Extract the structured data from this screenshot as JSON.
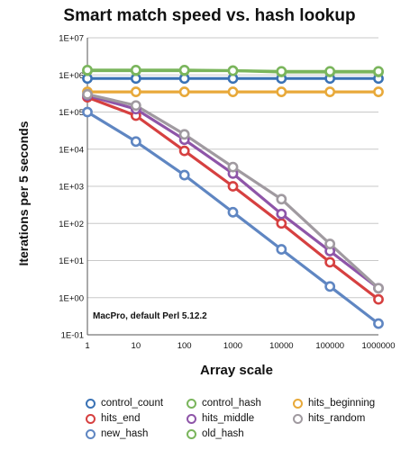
{
  "chart_data": {
    "type": "line",
    "title": "Smart match speed vs. hash lookup",
    "xlabel": "Array scale",
    "ylabel": "Iterations per 5 seconds",
    "xscale": "log",
    "yscale": "log",
    "x": [
      1,
      10,
      100,
      1000,
      10000,
      100000,
      1000000
    ],
    "x_tick_labels": [
      "1",
      "10",
      "100",
      "1000",
      "10000",
      "100000",
      "1000000"
    ],
    "ylim": [
      0.1,
      10000000
    ],
    "y_ticks": [
      0.1,
      1,
      10,
      100,
      1000,
      10000,
      100000,
      1000000,
      10000000
    ],
    "y_tick_labels": [
      "1E-01",
      "1E+00",
      "1E+01",
      "1E+02",
      "1E+03",
      "1E+04",
      "1E+05",
      "1E+06",
      "1E+07"
    ],
    "grid": "horizontal",
    "legend_position": "bottom",
    "annotation": "MacPro, default Perl 5.12.2",
    "series": [
      {
        "name": "control_count",
        "color": "#3a72b5",
        "values": [
          800000,
          800000,
          800000,
          800000,
          800000,
          800000,
          800000
        ]
      },
      {
        "name": "control_hash",
        "color": "#7ab55c",
        "values": [
          1300000,
          1300000,
          1300000,
          1300000,
          1200000,
          1200000,
          1200000
        ]
      },
      {
        "name": "hits_beginning",
        "color": "#e8a93a",
        "values": [
          350000,
          350000,
          350000,
          350000,
          350000,
          350000,
          350000
        ]
      },
      {
        "name": "hits_end",
        "color": "#d64040",
        "values": [
          250000,
          80000,
          9000,
          1000,
          100,
          9,
          0.9
        ]
      },
      {
        "name": "hits_middle",
        "color": "#8e55a8",
        "values": [
          280000,
          120000,
          18000,
          2200,
          180,
          18,
          1.8
        ]
      },
      {
        "name": "hits_random",
        "color": "#a09aa0",
        "values": [
          300000,
          150000,
          25000,
          3300,
          450,
          28,
          1.8
        ]
      },
      {
        "name": "new_hash",
        "color": "#5f86c2",
        "values": [
          100000,
          16000,
          2000,
          200,
          20,
          2,
          0.2
        ]
      },
      {
        "name": "old_hash",
        "color": "#7ab55c",
        "values": [
          1350000,
          1350000,
          1350000,
          1300000,
          1250000,
          1250000,
          1250000
        ]
      }
    ]
  }
}
